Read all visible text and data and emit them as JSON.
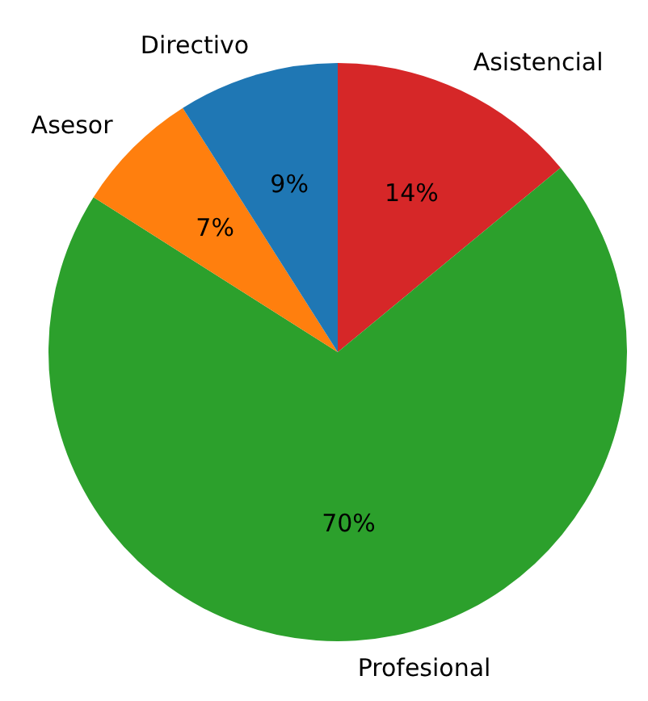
{
  "chart_data": {
    "type": "pie",
    "categories": [
      "Asistencial",
      "Profesional",
      "Asesor",
      "Directivo"
    ],
    "values": [
      14,
      70,
      7,
      9
    ],
    "colors": [
      "#d62728",
      "#2ca02c",
      "#ff7f0e",
      "#1f77b4"
    ],
    "value_labels": [
      "14%",
      "70%",
      "7%",
      "9%"
    ],
    "legend": false
  }
}
